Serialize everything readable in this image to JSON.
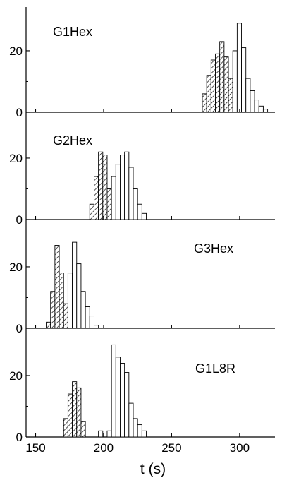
{
  "chart_data": {
    "type": "bar",
    "layout": "stacked-panels-shared-x",
    "xlabel": "t (s)",
    "xlim": [
      143,
      326
    ],
    "ylim": [
      0,
      34
    ],
    "x_ticks": [
      150,
      200,
      250,
      300
    ],
    "y_ticks": [
      0,
      20
    ],
    "bin_width": 3.2,
    "fill_styles": {
      "hatched": "diagonal-hatch",
      "open": "white"
    },
    "panels": [
      {
        "label": "G1Hex",
        "series": [
          {
            "name": "",
            "style": "hatched",
            "x": [
              272.6,
              275.8,
              279.0,
              282.2,
              285.4,
              288.6,
              291.8
            ],
            "values": [
              6,
              12,
              17,
              19,
              23,
              18,
              11
            ]
          },
          {
            "name": "",
            "style": "open",
            "x": [
              295.0,
              298.2,
              301.4,
              304.6,
              307.8,
              311.0,
              314.2,
              317.4
            ],
            "values": [
              20,
              29,
              21,
              11,
              7,
              4,
              2,
              1
            ]
          }
        ]
      },
      {
        "label": "G2Hex",
        "series": [
          {
            "name": "",
            "style": "hatched",
            "x": [
              189.8,
              193.0,
              196.2,
              199.4,
              202.6
            ],
            "values": [
              5,
              14,
              22,
              21,
              10
            ]
          },
          {
            "name": "",
            "style": "open",
            "x": [
              205.8,
              209.0,
              212.2,
              215.4,
              218.6,
              221.8,
              225.0,
              228.2
            ],
            "values": [
              14,
              18,
              21,
              22,
              17,
              10,
              5,
              2
            ]
          }
        ]
      },
      {
        "label": "G3Hex",
        "series": [
          {
            "name": "",
            "style": "hatched",
            "x": [
              157.8,
              161.0,
              164.2,
              167.4,
              170.6
            ],
            "values": [
              2,
              12,
              27,
              18,
              8
            ]
          },
          {
            "name": "",
            "style": "open",
            "x": [
              173.8,
              177.0,
              180.2,
              183.4,
              186.6,
              189.8,
              193.0
            ],
            "values": [
              18,
              28,
              21,
              12,
              7,
              4,
              1
            ]
          }
        ]
      },
      {
        "label": "G1L8R",
        "series": [
          {
            "name": "",
            "style": "hatched",
            "x": [
              170.6,
              173.8,
              177.0,
              180.2,
              183.4
            ],
            "values": [
              6,
              14,
              18,
              16,
              5
            ]
          },
          {
            "name": "",
            "style": "open",
            "x": [
              196.2,
              199.4,
              202.6,
              205.8,
              209.0,
              212.2,
              215.4,
              218.6,
              221.8,
              225.0,
              228.2
            ],
            "values": [
              2,
              0,
              2,
              30,
              26,
              24,
              21,
              11,
              6,
              4,
              2
            ]
          }
        ]
      }
    ]
  }
}
